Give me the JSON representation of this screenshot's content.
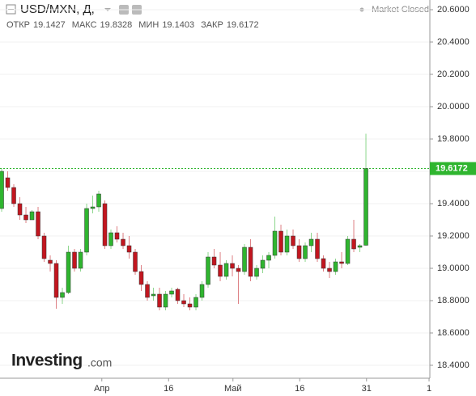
{
  "chart_data": {
    "type": "candlestick",
    "title": "USD/MXN, Д,",
    "status": "Market Closed",
    "ohlc_labels": [
      "ОТКР",
      "МАКС",
      "МИН",
      "ЗАКР"
    ],
    "logo": {
      "name": "Investing",
      "suffix": ".com"
    },
    "up_color": "#2fb52f",
    "down_color": "#c2161f",
    "open": [
      19.37,
      19.56,
      19.5,
      19.4,
      19.33,
      19.3,
      19.35,
      19.2,
      19.05,
      19.03,
      18.82,
      18.85,
      19.1,
      19.0,
      19.1,
      19.37,
      19.38,
      19.4,
      19.14,
      19.22,
      19.18,
      19.14,
      19.1,
      18.98,
      18.9,
      18.83,
      18.84,
      18.76,
      18.84,
      18.87,
      18.8,
      18.78,
      18.76,
      18.82,
      18.9,
      19.07,
      19.02,
      18.95,
      19.03,
      19.0,
      18.98,
      19.13,
      18.95,
      19.0,
      19.05,
      19.08,
      19.23,
      19.1,
      19.2,
      19.14,
      19.06,
      19.14,
      19.18,
      19.06,
      19.0,
      18.98,
      19.04,
      19.03,
      19.18,
      19.13,
      19.1427
    ],
    "high": [
      19.62,
      19.6,
      19.52,
      19.44,
      19.38,
      19.36,
      19.38,
      19.22,
      19.08,
      19.05,
      18.88,
      19.14,
      19.12,
      19.12,
      19.4,
      19.45,
      19.48,
      19.42,
      19.24,
      19.26,
      19.22,
      19.2,
      19.12,
      19.02,
      18.92,
      18.88,
      18.88,
      18.86,
      18.88,
      18.88,
      18.84,
      18.82,
      18.84,
      18.92,
      19.1,
      19.12,
      19.1,
      19.05,
      19.08,
      19.02,
      19.15,
      19.18,
      19.02,
      19.08,
      19.1,
      19.32,
      19.27,
      19.24,
      19.24,
      19.18,
      19.16,
      19.22,
      19.22,
      19.08,
      19.04,
      19.06,
      19.1,
      19.2,
      19.3,
      19.15,
      19.8328
    ],
    "low": [
      19.35,
      19.48,
      19.38,
      19.3,
      19.28,
      19.3,
      19.18,
      19.04,
      18.98,
      18.75,
      18.78,
      18.84,
      18.98,
      18.98,
      19.08,
      19.34,
      19.35,
      19.12,
      19.12,
      19.16,
      19.12,
      19.06,
      18.96,
      18.86,
      18.8,
      18.8,
      18.74,
      18.74,
      18.82,
      18.78,
      18.76,
      18.74,
      18.74,
      18.8,
      18.88,
      19.0,
      18.92,
      18.93,
      18.95,
      18.78,
      18.96,
      18.92,
      18.93,
      18.97,
      19.0,
      19.06,
      19.08,
      19.08,
      19.12,
      19.04,
      19.04,
      19.1,
      19.04,
      18.98,
      18.94,
      18.96,
      19.0,
      19.02,
      19.1,
      19.1,
      19.1403
    ],
    "close": [
      19.6,
      19.5,
      19.4,
      19.33,
      19.3,
      19.35,
      19.2,
      19.06,
      19.03,
      18.82,
      18.85,
      19.1,
      19.0,
      19.1,
      19.37,
      19.38,
      19.46,
      19.14,
      19.22,
      19.18,
      19.14,
      19.1,
      18.98,
      18.9,
      18.82,
      18.84,
      18.76,
      18.84,
      18.86,
      18.8,
      18.78,
      18.76,
      18.82,
      18.9,
      19.07,
      19.02,
      18.95,
      19.03,
      19.0,
      18.98,
      19.13,
      18.95,
      19.0,
      19.05,
      19.08,
      19.23,
      19.1,
      19.2,
      19.14,
      19.06,
      19.14,
      19.18,
      19.06,
      19.0,
      18.98,
      19.04,
      19.03,
      19.18,
      19.12,
      19.14,
      19.6172
    ],
    "xlim": [
      -0.27,
      70.53
    ],
    "xticks": [
      {
        "value": 16.5,
        "label": "Апр"
      },
      {
        "value": 27.5,
        "label": "16"
      },
      {
        "value": 38.1,
        "label": "Май"
      },
      {
        "value": 49.1,
        "label": "16"
      },
      {
        "value": 60.1,
        "label": "31"
      },
      {
        "value": 70.4,
        "label": "1"
      }
    ],
    "ylim": [
      18.32,
      20.66
    ],
    "yticks": [
      {
        "value": 20.6,
        "label": "20.6000"
      },
      {
        "value": 20.4,
        "label": "20.4000"
      },
      {
        "value": 20.2,
        "label": "20.2000"
      },
      {
        "value": 20.0,
        "label": "20.0000"
      },
      {
        "value": 19.8,
        "label": "19.8000"
      },
      {
        "value": 19.6,
        "label": "19.6000"
      },
      {
        "value": 19.4,
        "label": "19.4000"
      },
      {
        "value": 19.2,
        "label": "19.2000"
      },
      {
        "value": 19.0,
        "label": "19.0000"
      },
      {
        "value": 18.8,
        "label": "18.8000"
      },
      {
        "value": 18.6,
        "label": "18.6000"
      },
      {
        "value": 18.4,
        "label": "18.4000"
      }
    ]
  }
}
